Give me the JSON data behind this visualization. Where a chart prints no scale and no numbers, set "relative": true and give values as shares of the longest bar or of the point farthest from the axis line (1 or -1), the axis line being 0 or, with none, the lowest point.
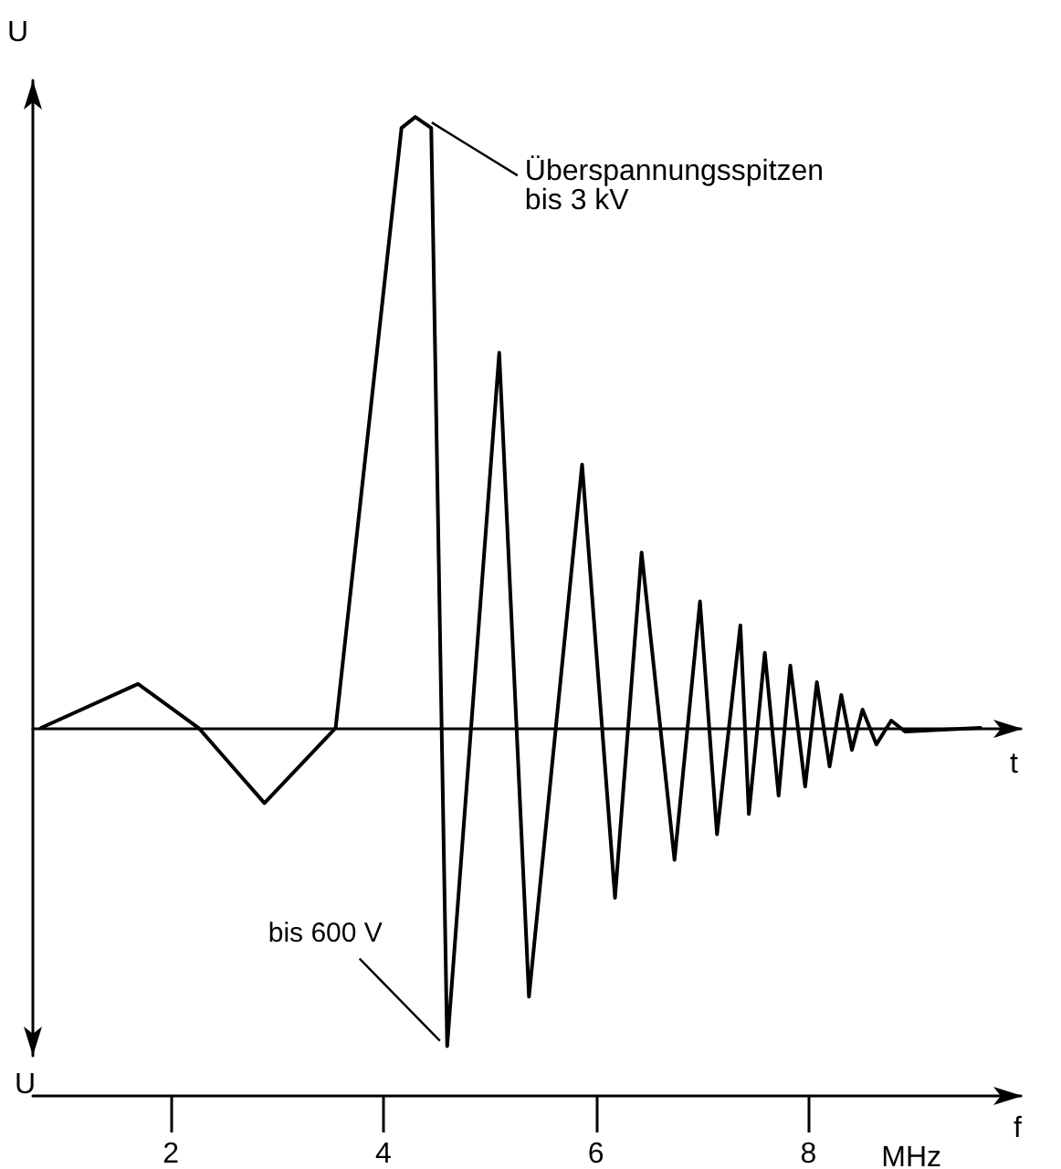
{
  "chart_data": {
    "type": "line",
    "relative": true,
    "ylabel": "U",
    "xlabel": "f",
    "color": "#000000",
    "marker": "none",
    "line_style": "solid",
    "grid": false,
    "x": [
      0.777,
      1.69,
      2.26,
      2.88,
      3.55,
      4.17,
      4.3,
      4.45,
      4.6,
      5.09,
      5.37,
      5.87,
      6.18,
      6.43,
      6.74,
      6.98,
      7.14,
      7.36,
      7.44,
      7.59,
      7.72,
      7.83,
      7.97,
      8.08,
      8.2,
      8.31,
      8.41,
      8.51,
      8.64,
      8.78,
      8.91,
      9.62
    ],
    "values": [
      0,
      0.072,
      0,
      -0.123,
      0,
      0.982,
      1,
      0.982,
      -0.521,
      0.614,
      -0.44,
      0.431,
      -0.278,
      0.287,
      -0.216,
      0.207,
      -0.174,
      0.168,
      -0.141,
      0.123,
      -0.111,
      0.102,
      -0.096,
      0.075,
      -0.063,
      0.054,
      -0.036,
      0.03,
      -0.027,
      0.012,
      -0.006,
      0
    ],
    "xlim": [
      0.7,
      10
    ],
    "xticks": [
      2,
      4,
      6,
      8
    ],
    "annotations": [
      "Überspannungsspitzen\nbis 3 kV",
      {
        "text": "bis 600 V",
        "x": 4.6,
        "y": -0.521
      },
      "U",
      "t",
      "MHz"
    ]
  }
}
